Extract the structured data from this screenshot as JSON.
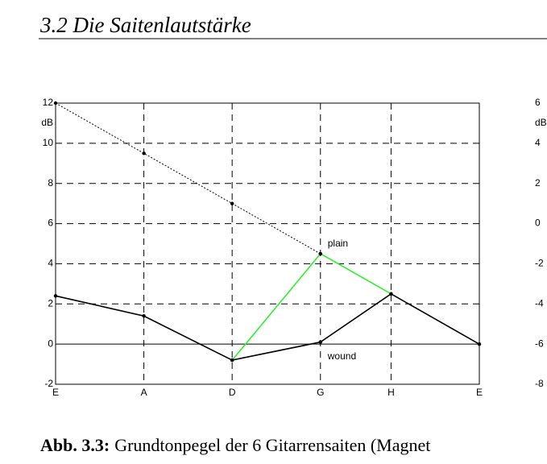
{
  "header": {
    "title": "3.2 Die Saitenlautstärke"
  },
  "chart_data": [
    {
      "type": "line",
      "x": [
        0,
        5,
        10,
        15,
        19,
        24
      ],
      "xlim": [
        0,
        24
      ],
      "xticks": [
        {
          "value": 0,
          "label": "E"
        },
        {
          "value": 5,
          "label": "A"
        },
        {
          "value": 10,
          "label": "D"
        },
        {
          "value": 15,
          "label": "G"
        },
        {
          "value": 19,
          "label": "H"
        },
        {
          "value": 24,
          "label": "E"
        }
      ],
      "ylabel": "dB",
      "ylim": [
        -2,
        12
      ],
      "yticks": [
        -2,
        0,
        2,
        4,
        6,
        8,
        10,
        12
      ],
      "grid": true,
      "series": [
        {
          "color": "#000000",
          "style": "dotted",
          "values": [
            12,
            9.5,
            7,
            4.5,
            null,
            null
          ]
        },
        {
          "name": "wound",
          "color": "#000000",
          "style": "solid",
          "values": [
            2.4,
            1.4,
            -0.8,
            0.1,
            2.5,
            0
          ]
        },
        {
          "name": "plain",
          "color": "#33ee33",
          "style": "solid",
          "values": [
            null,
            null,
            -0.8,
            4.5,
            2.5,
            null
          ]
        }
      ]
    },
    {
      "type": "line",
      "ylabel": "dB",
      "ylim": [
        -8,
        6
      ],
      "yticks": [
        -8,
        -6,
        -4,
        -2,
        0,
        2,
        4,
        6
      ]
    }
  ],
  "caption": {
    "label": "Abb. 3.3:",
    "text": "Grundtonpegel der 6 Gitarrensaiten (Magnet"
  }
}
